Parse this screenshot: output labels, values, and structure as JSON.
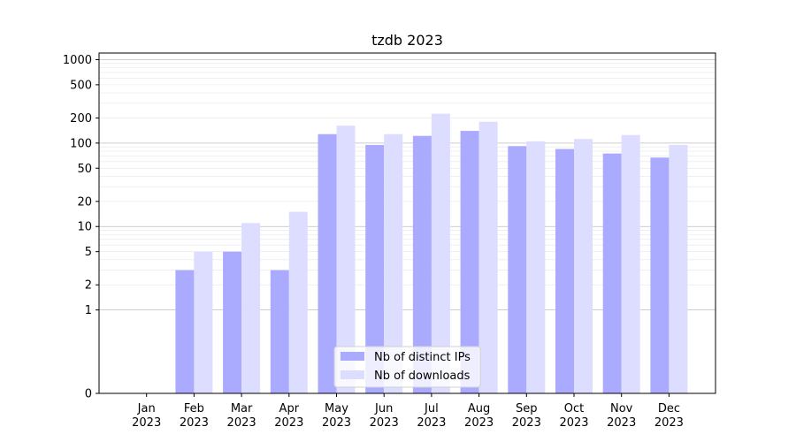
{
  "chart_data": {
    "type": "bar",
    "title": "tzdb 2023",
    "xlabel": "",
    "ylabel": "",
    "yscale": "symlog",
    "ylim": [
      0,
      1200
    ],
    "yticks": [
      0,
      1,
      2,
      5,
      10,
      20,
      50,
      100,
      200,
      500,
      1000
    ],
    "grid": "y",
    "legend_position": "lower-center",
    "categories": [
      [
        "Jan",
        "2023"
      ],
      [
        "Feb",
        "2023"
      ],
      [
        "Mar",
        "2023"
      ],
      [
        "Apr",
        "2023"
      ],
      [
        "May",
        "2023"
      ],
      [
        "Jun",
        "2023"
      ],
      [
        "Jul",
        "2023"
      ],
      [
        "Aug",
        "2023"
      ],
      [
        "Sep",
        "2023"
      ],
      [
        "Oct",
        "2023"
      ],
      [
        "Nov",
        "2023"
      ],
      [
        "Dec",
        "2023"
      ]
    ],
    "series": [
      {
        "name": "Nb of distinct IPs",
        "color": "#aaaaff",
        "values": [
          0,
          3,
          5,
          3,
          128,
          95,
          122,
          140,
          92,
          85,
          75,
          67
        ]
      },
      {
        "name": "Nb of downloads",
        "color": "#ddddff",
        "values": [
          0,
          5,
          11,
          15,
          162,
          128,
          225,
          180,
          105,
          112,
          125,
          95
        ]
      }
    ]
  }
}
